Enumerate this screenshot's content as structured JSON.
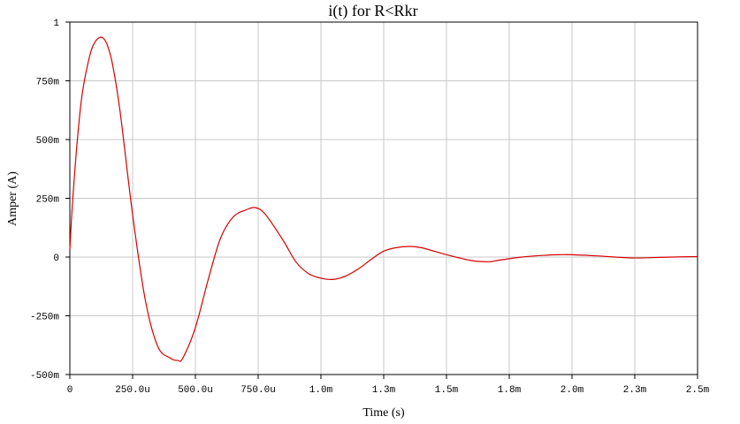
{
  "chart_data": {
    "type": "line",
    "title": "i(t) for R<Rkr",
    "xlabel": "Time (s)",
    "ylabel": "Amper (A)",
    "xlim": [
      0,
      0.0025
    ],
    "ylim": [
      -0.5,
      1
    ],
    "grid": true,
    "x_ticks": [
      {
        "value": 0,
        "label": "0"
      },
      {
        "value": 0.00025,
        "label": "250.0u"
      },
      {
        "value": 0.0005,
        "label": "500.0u"
      },
      {
        "value": 0.00075,
        "label": "750.0u"
      },
      {
        "value": 0.001,
        "label": "1.0m"
      },
      {
        "value": 0.00125,
        "label": "1.3m"
      },
      {
        "value": 0.0015,
        "label": "1.5m"
      },
      {
        "value": 0.00175,
        "label": "1.8m"
      },
      {
        "value": 0.002,
        "label": "2.0m"
      },
      {
        "value": 0.00225,
        "label": "2.3m"
      },
      {
        "value": 0.0025,
        "label": "2.5m"
      }
    ],
    "y_ticks": [
      {
        "value": 1,
        "label": "1"
      },
      {
        "value": 0.75,
        "label": "750m"
      },
      {
        "value": 0.5,
        "label": "500m"
      },
      {
        "value": 0.25,
        "label": "250m"
      },
      {
        "value": 0,
        "label": "0"
      },
      {
        "value": -0.25,
        "label": "-250m"
      },
      {
        "value": -0.5,
        "label": "-500m"
      }
    ],
    "series": [
      {
        "color": "#d40000",
        "x": [
          0,
          1e-05,
          3e-05,
          5e-05,
          8e-05,
          0.0001,
          0.00012,
          0.000135,
          0.00015,
          0.00017,
          0.0002,
          0.00025,
          0.0003,
          0.00035,
          0.0004,
          0.00043,
          0.00045,
          0.0005,
          0.00055,
          0.0006,
          0.00065,
          0.0007,
          0.00074,
          0.00078,
          0.00085,
          0.0009,
          0.00095,
          0.001,
          0.00105,
          0.0011,
          0.00115,
          0.0012,
          0.00125,
          0.0013,
          0.00135,
          0.0014,
          0.0015,
          0.0016,
          0.00167,
          0.0017,
          0.0018,
          0.0019,
          0.00195,
          0.002,
          0.0021,
          0.0022,
          0.00225,
          0.0023,
          0.0024,
          0.0025
        ],
        "y": [
          0.03,
          0.22,
          0.5,
          0.7,
          0.86,
          0.915,
          0.935,
          0.93,
          0.9,
          0.82,
          0.62,
          0.18,
          -0.18,
          -0.38,
          -0.43,
          -0.44,
          -0.43,
          -0.3,
          -0.1,
          0.08,
          0.17,
          0.2,
          0.21,
          0.18,
          0.07,
          -0.02,
          -0.07,
          -0.09,
          -0.095,
          -0.08,
          -0.05,
          -0.01,
          0.025,
          0.04,
          0.045,
          0.04,
          0.01,
          -0.015,
          -0.02,
          -0.015,
          0.0,
          0.008,
          0.01,
          0.01,
          0.005,
          -0.002,
          -0.004,
          -0.003,
          0.0,
          0.002
        ]
      }
    ]
  }
}
